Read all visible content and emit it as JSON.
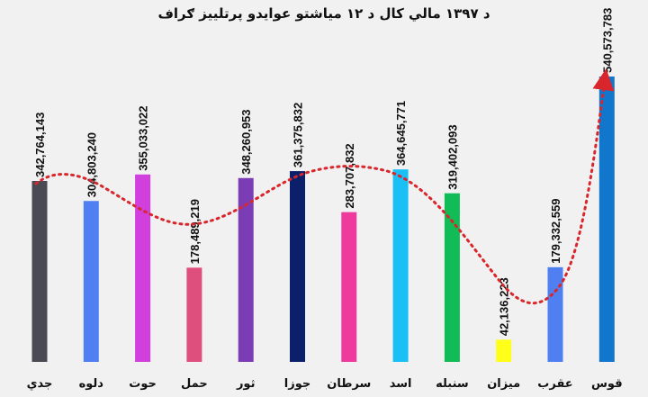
{
  "chart_data": {
    "type": "bar",
    "title": "د ۱۳۹۷ مالي کال د ۱۲ میاشتو عوایدو پرتلییز ګراف",
    "categories": [
      "جدي",
      "دلوه",
      "حوت",
      "حمل",
      "ثور",
      "جوزا",
      "سرطان",
      "اسد",
      "سنبله",
      "ميزان",
      "عقرب",
      "قوس"
    ],
    "values": [
      342764143,
      304803240,
      355033022,
      178489219,
      348260953,
      361375832,
      283707832,
      364645771,
      319402093,
      42136223,
      179332559,
      540573783
    ],
    "value_labels": [
      "342,764,143",
      "304,803,240",
      "355,033,022",
      "178,489,219",
      "348,260,953",
      "361,375,832",
      "283,707,832",
      "364,645,771",
      "319,402,093",
      "42,136,223",
      "179,332,559",
      "540,573,783"
    ],
    "colors": [
      "#4a4a55",
      "#4f7ff0",
      "#d13fdc",
      "#df4f7e",
      "#7b3db5",
      "#0b1f6b",
      "#ee3a9c",
      "#19bff5",
      "#11bb55",
      "#ffff1a",
      "#4f7ff0",
      "#1177cc"
    ],
    "trendline": {
      "style": "dotted",
      "color": "#d9262c",
      "arrow": "end"
    },
    "grid": false,
    "xlabel": "",
    "ylabel": ""
  }
}
